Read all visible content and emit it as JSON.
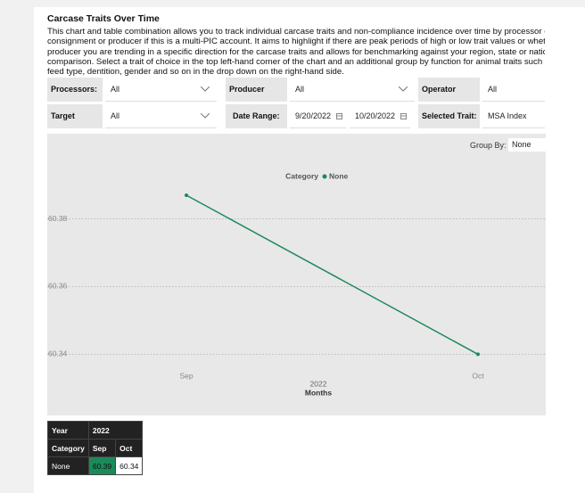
{
  "header": {
    "title": "Carcase Traits Over Time",
    "description": [
      "This chart and table combination allows you to track individual carcase traits and non-compliance incidence over time by processor o",
      "consignment or producer if this is a multi-PIC account. It aims to highlight if there are peak periods of high or low trait values or whet",
      "producer you are trending in a specific direction for the carcase traits and allows for benchmarking against your region, state or natio",
      "comparison. Select a trait of choice in the top left-hand corner of the chart and an additional group by function for animal traits such",
      "feed type, dentition, gender and so on in the drop down on the right-hand side."
    ]
  },
  "filters": {
    "processors": {
      "label": "Processors:",
      "value": "All"
    },
    "producer_pics": {
      "label": "Producer PICs:",
      "value": "All"
    },
    "operator_codes": {
      "label": "Operator Codes:",
      "value": "All"
    },
    "target_markets": {
      "label": "Target Markets:",
      "value": "All"
    },
    "date_range": {
      "label": "Date Range:",
      "from": "9/20/2022",
      "to": "10/20/2022"
    },
    "selected_trait": {
      "label": "Selected Trait:",
      "value": "MSA Index"
    }
  },
  "group_by": {
    "label": "Group By:",
    "value": "None"
  },
  "chart_data": {
    "type": "line",
    "legend_title": "Category",
    "categories": [
      "Sep",
      "Oct"
    ],
    "x_group_label": "2022",
    "x_label": "Months",
    "series": [
      {
        "name": "None",
        "color": "#1b8a5a",
        "values": [
          60.387,
          60.34
        ]
      }
    ],
    "ylim": [
      60.338,
      60.392
    ],
    "yticks": [
      60.34,
      60.36,
      60.38
    ],
    "grid": true
  },
  "table": {
    "rows": [
      [
        "Year",
        "2022"
      ],
      [
        "Category",
        "Sep",
        "Oct"
      ],
      [
        "None",
        "60.39",
        "60.34"
      ]
    ]
  }
}
